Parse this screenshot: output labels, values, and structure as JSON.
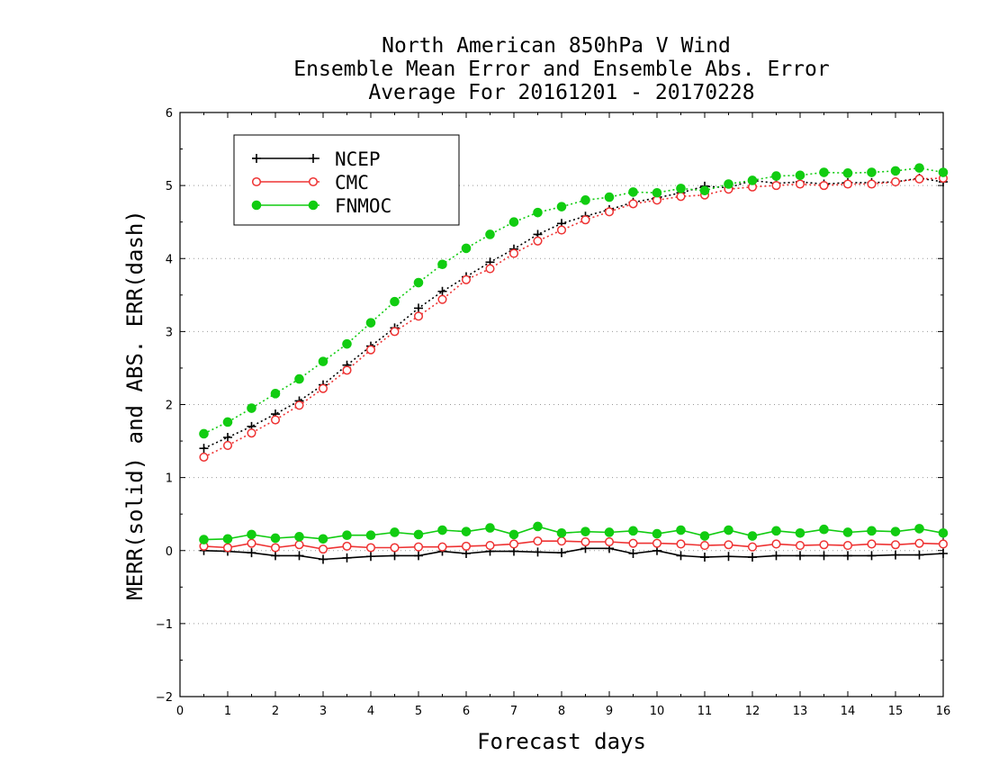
{
  "chart_data": {
    "type": "line",
    "title": [
      "North American 850hPa V Wind",
      "Ensemble Mean Error and Ensemble Abs. Error",
      "Average For 20161201 - 20170228"
    ],
    "xlabel": "Forecast days",
    "ylabel": "MERR(solid) and ABS. ERR(dash)",
    "xlim": [
      0,
      16
    ],
    "ylim": [
      -2,
      6
    ],
    "xticks": [
      0,
      1,
      2,
      3,
      4,
      5,
      6,
      7,
      8,
      9,
      10,
      11,
      12,
      13,
      14,
      15,
      16
    ],
    "yticks": [
      -2,
      -1,
      0,
      1,
      2,
      3,
      4,
      5,
      6
    ],
    "grid": "horizontal dotted",
    "legend_position": "top-left",
    "x": [
      0.5,
      1,
      1.5,
      2,
      2.5,
      3,
      3.5,
      4,
      4.5,
      5,
      5.5,
      6,
      6.5,
      7,
      7.5,
      8,
      8.5,
      9,
      9.5,
      10,
      10.5,
      11,
      11.5,
      12,
      12.5,
      13,
      13.5,
      14,
      14.5,
      15,
      15.5,
      16
    ],
    "series": [
      {
        "name": "NCEP",
        "color": "#000000",
        "marker": "plus",
        "abs_error": [
          1.4,
          1.55,
          1.7,
          1.87,
          2.05,
          2.27,
          2.54,
          2.8,
          3.05,
          3.32,
          3.55,
          3.75,
          3.95,
          4.13,
          4.33,
          4.48,
          4.58,
          4.67,
          4.77,
          4.83,
          4.9,
          4.99,
          4.97,
          5.07,
          5.03,
          5.05,
          5.02,
          5.04,
          5.04,
          5.05,
          5.1,
          5.05
        ],
        "mean_error": [
          0.0,
          -0.01,
          -0.03,
          -0.07,
          -0.07,
          -0.12,
          -0.1,
          -0.08,
          -0.07,
          -0.07,
          -0.01,
          -0.04,
          -0.01,
          -0.01,
          -0.02,
          -0.03,
          0.03,
          0.03,
          -0.04,
          0.0,
          -0.07,
          -0.09,
          -0.08,
          -0.09,
          -0.07,
          -0.07,
          -0.07,
          -0.07,
          -0.07,
          -0.06,
          -0.06,
          -0.04
        ]
      },
      {
        "name": "CMC",
        "color": "#ee3333",
        "marker": "open-circle",
        "abs_error": [
          1.28,
          1.44,
          1.61,
          1.79,
          1.99,
          2.22,
          2.47,
          2.75,
          3.0,
          3.21,
          3.44,
          3.71,
          3.86,
          4.07,
          4.24,
          4.39,
          4.53,
          4.64,
          4.75,
          4.8,
          4.85,
          4.87,
          4.95,
          4.98,
          5.0,
          5.02,
          5.0,
          5.02,
          5.02,
          5.05,
          5.09,
          5.1
        ],
        "mean_error": [
          0.06,
          0.04,
          0.1,
          0.04,
          0.08,
          0.02,
          0.06,
          0.04,
          0.04,
          0.05,
          0.05,
          0.06,
          0.07,
          0.09,
          0.13,
          0.13,
          0.12,
          0.12,
          0.1,
          0.1,
          0.09,
          0.07,
          0.08,
          0.05,
          0.09,
          0.07,
          0.08,
          0.07,
          0.09,
          0.08,
          0.1,
          0.09
        ]
      },
      {
        "name": "FNMOC",
        "color": "#11cc11",
        "marker": "filled-circle",
        "abs_error": [
          1.6,
          1.76,
          1.95,
          2.15,
          2.35,
          2.59,
          2.83,
          3.12,
          3.41,
          3.67,
          3.92,
          4.14,
          4.33,
          4.5,
          4.63,
          4.71,
          4.8,
          4.84,
          4.91,
          4.9,
          4.96,
          4.93,
          5.02,
          5.07,
          5.13,
          5.14,
          5.18,
          5.17,
          5.18,
          5.2,
          5.24,
          5.18
        ],
        "mean_error": [
          0.15,
          0.16,
          0.22,
          0.17,
          0.19,
          0.16,
          0.21,
          0.21,
          0.25,
          0.22,
          0.28,
          0.26,
          0.31,
          0.22,
          0.33,
          0.24,
          0.26,
          0.25,
          0.27,
          0.23,
          0.28,
          0.2,
          0.28,
          0.2,
          0.27,
          0.24,
          0.29,
          0.25,
          0.27,
          0.26,
          0.3,
          0.24
        ]
      }
    ]
  }
}
